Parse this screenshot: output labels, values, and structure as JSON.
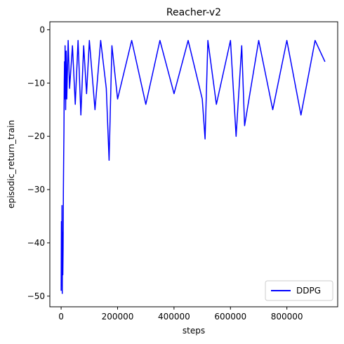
{
  "chart_data": {
    "type": "line",
    "title": "Reacher-v2",
    "xlabel": "steps",
    "ylabel": "episodic_return_train",
    "xlim": [
      -40000,
      980000
    ],
    "ylim": [
      -52,
      1.5
    ],
    "xticks": [
      0,
      200000,
      400000,
      600000,
      800000
    ],
    "xtick_labels": [
      "0",
      "200000",
      "400000",
      "600000",
      "800000"
    ],
    "yticks": [
      -50,
      -40,
      -30,
      -20,
      -10,
      0
    ],
    "ytick_labels": [
      "−50",
      "−40",
      "−30",
      "−20",
      "−10",
      "0"
    ],
    "grid": false,
    "legend": {
      "position": "bottom-right",
      "entries": [
        "DDPG"
      ]
    },
    "series": [
      {
        "name": "DDPG",
        "color": "#0000ff",
        "x": [
          0,
          1000,
          2000,
          3000,
          4000,
          5000,
          6000,
          7000,
          8000,
          9000,
          10000,
          11000,
          12000,
          13000,
          14000,
          15000,
          16000,
          18000,
          20000,
          25000,
          30000,
          40000,
          50000,
          60000,
          70000,
          80000,
          90000,
          100000,
          120000,
          140000,
          160000,
          170000,
          180000,
          200000,
          250000,
          300000,
          350000,
          400000,
          450000,
          500000,
          510000,
          520000,
          550000,
          600000,
          620000,
          640000,
          650000,
          700000,
          750000,
          800000,
          850000,
          900000,
          935000
        ],
        "y": [
          -49,
          -36,
          -48,
          -33,
          -49.5,
          -38,
          -46,
          -41,
          -30,
          -24,
          -19,
          -10,
          -6,
          -13,
          -3,
          -8,
          -15,
          -4,
          -13,
          -2,
          -11,
          -3,
          -14,
          -2,
          -16,
          -3,
          -12,
          -2,
          -15,
          -2,
          -11,
          -24.5,
          -3,
          -13,
          -2,
          -14,
          -2,
          -12,
          -2,
          -13,
          -20.5,
          -2,
          -14,
          -2,
          -20,
          -3,
          -18,
          -2,
          -15,
          -2,
          -16,
          -2,
          -6
        ]
      }
    ]
  }
}
